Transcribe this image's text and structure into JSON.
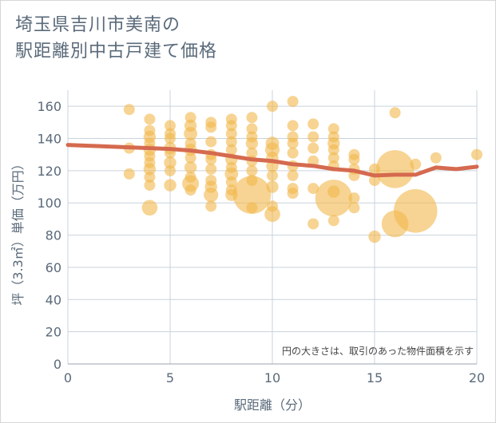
{
  "chart_data": {
    "type": "scatter",
    "title": [
      "埼玉県吉川市美南の",
      "駅距離別中古戸建て価格"
    ],
    "xlabel": "駅距離（分）",
    "ylabel": "坪（3.3㎡）単価（万円）",
    "note": "円の大きさは、取引のあった物件面積を示す",
    "xlim": [
      0,
      20
    ],
    "ylim": [
      0,
      170
    ],
    "xticks": [
      "0",
      "5",
      "10",
      "15",
      "20"
    ],
    "yticks": [
      "0",
      "20",
      "40",
      "60",
      "80",
      "100",
      "120",
      "140",
      "160"
    ],
    "grid": true,
    "colors": {
      "bubble": "#f2b84b",
      "trend": "#d56a4f",
      "grid": "#c9d3dc",
      "text": "#5a6a7a"
    },
    "points": [
      {
        "x": 3,
        "y": 158,
        "s": 1
      },
      {
        "x": 3,
        "y": 134,
        "s": 1
      },
      {
        "x": 3,
        "y": 118,
        "s": 1
      },
      {
        "x": 4,
        "y": 152,
        "s": 1
      },
      {
        "x": 4,
        "y": 145,
        "s": 1
      },
      {
        "x": 4,
        "y": 141,
        "s": 1.1
      },
      {
        "x": 4,
        "y": 137,
        "s": 1
      },
      {
        "x": 4,
        "y": 133,
        "s": 1.1
      },
      {
        "x": 4,
        "y": 129,
        "s": 1
      },
      {
        "x": 4,
        "y": 125,
        "s": 1
      },
      {
        "x": 4,
        "y": 121,
        "s": 1.1
      },
      {
        "x": 4,
        "y": 116,
        "s": 1
      },
      {
        "x": 4,
        "y": 111,
        "s": 1
      },
      {
        "x": 4,
        "y": 97,
        "s": 1.4
      },
      {
        "x": 5,
        "y": 148,
        "s": 1
      },
      {
        "x": 5,
        "y": 143,
        "s": 1
      },
      {
        "x": 5,
        "y": 140,
        "s": 1
      },
      {
        "x": 5,
        "y": 134,
        "s": 1.1
      },
      {
        "x": 5,
        "y": 131,
        "s": 1
      },
      {
        "x": 5,
        "y": 125,
        "s": 1.1
      },
      {
        "x": 5,
        "y": 120,
        "s": 1
      },
      {
        "x": 5,
        "y": 111,
        "s": 1.1
      },
      {
        "x": 6,
        "y": 153,
        "s": 1
      },
      {
        "x": 6,
        "y": 148,
        "s": 1.1
      },
      {
        "x": 6,
        "y": 143,
        "s": 1.2
      },
      {
        "x": 6,
        "y": 137,
        "s": 1
      },
      {
        "x": 6,
        "y": 133,
        "s": 1.1
      },
      {
        "x": 6,
        "y": 128,
        "s": 1
      },
      {
        "x": 6,
        "y": 122,
        "s": 1.1
      },
      {
        "x": 6,
        "y": 116,
        "s": 1
      },
      {
        "x": 6,
        "y": 112,
        "s": 1.5
      },
      {
        "x": 6,
        "y": 108,
        "s": 1
      },
      {
        "x": 7,
        "y": 150,
        "s": 1
      },
      {
        "x": 7,
        "y": 147,
        "s": 1
      },
      {
        "x": 7,
        "y": 138,
        "s": 1
      },
      {
        "x": 7,
        "y": 130,
        "s": 1
      },
      {
        "x": 7,
        "y": 127,
        "s": 1
      },
      {
        "x": 7,
        "y": 121,
        "s": 1
      },
      {
        "x": 7,
        "y": 114,
        "s": 1
      },
      {
        "x": 7,
        "y": 110,
        "s": 1.1
      },
      {
        "x": 7,
        "y": 105,
        "s": 1.3
      },
      {
        "x": 7,
        "y": 98,
        "s": 1
      },
      {
        "x": 8,
        "y": 152,
        "s": 1
      },
      {
        "x": 8,
        "y": 148,
        "s": 1
      },
      {
        "x": 8,
        "y": 143,
        "s": 1
      },
      {
        "x": 8,
        "y": 138,
        "s": 1
      },
      {
        "x": 8,
        "y": 133,
        "s": 1
      },
      {
        "x": 8,
        "y": 127,
        "s": 1.1
      },
      {
        "x": 8,
        "y": 122,
        "s": 1
      },
      {
        "x": 8,
        "y": 118,
        "s": 1.2
      },
      {
        "x": 8,
        "y": 113,
        "s": 1
      },
      {
        "x": 8,
        "y": 108,
        "s": 1
      },
      {
        "x": 8,
        "y": 105,
        "s": 1.1
      },
      {
        "x": 9,
        "y": 153,
        "s": 1
      },
      {
        "x": 9,
        "y": 146,
        "s": 1
      },
      {
        "x": 9,
        "y": 141,
        "s": 1
      },
      {
        "x": 9,
        "y": 137,
        "s": 1.1
      },
      {
        "x": 9,
        "y": 131,
        "s": 1
      },
      {
        "x": 9,
        "y": 126,
        "s": 1
      },
      {
        "x": 9,
        "y": 120,
        "s": 1
      },
      {
        "x": 9,
        "y": 114,
        "s": 1
      },
      {
        "x": 9,
        "y": 105,
        "s": 3.4
      },
      {
        "x": 9,
        "y": 97,
        "s": 1
      },
      {
        "x": 10,
        "y": 160,
        "s": 1
      },
      {
        "x": 10,
        "y": 137,
        "s": 1.2
      },
      {
        "x": 10,
        "y": 133,
        "s": 1.3
      },
      {
        "x": 10,
        "y": 128,
        "s": 1.1
      },
      {
        "x": 10,
        "y": 123,
        "s": 1.1
      },
      {
        "x": 10,
        "y": 117,
        "s": 1
      },
      {
        "x": 10,
        "y": 110,
        "s": 1.1
      },
      {
        "x": 10,
        "y": 98,
        "s": 1
      },
      {
        "x": 10,
        "y": 93,
        "s": 1.4
      },
      {
        "x": 11,
        "y": 163,
        "s": 1
      },
      {
        "x": 11,
        "y": 148,
        "s": 1
      },
      {
        "x": 11,
        "y": 141,
        "s": 1
      },
      {
        "x": 11,
        "y": 137,
        "s": 1
      },
      {
        "x": 11,
        "y": 131,
        "s": 1
      },
      {
        "x": 11,
        "y": 123,
        "s": 1
      },
      {
        "x": 11,
        "y": 117,
        "s": 1
      },
      {
        "x": 11,
        "y": 109,
        "s": 1
      },
      {
        "x": 11,
        "y": 106,
        "s": 1
      },
      {
        "x": 12,
        "y": 149,
        "s": 1
      },
      {
        "x": 12,
        "y": 141,
        "s": 1
      },
      {
        "x": 12,
        "y": 134,
        "s": 1
      },
      {
        "x": 12,
        "y": 126,
        "s": 1
      },
      {
        "x": 12,
        "y": 109,
        "s": 1
      },
      {
        "x": 12,
        "y": 87,
        "s": 1
      },
      {
        "x": 13,
        "y": 146,
        "s": 1
      },
      {
        "x": 13,
        "y": 141,
        "s": 1
      },
      {
        "x": 13,
        "y": 137,
        "s": 1.1
      },
      {
        "x": 13,
        "y": 133,
        "s": 1
      },
      {
        "x": 13,
        "y": 128,
        "s": 1
      },
      {
        "x": 13,
        "y": 123,
        "s": 1
      },
      {
        "x": 13,
        "y": 107,
        "s": 1.1
      },
      {
        "x": 13,
        "y": 103,
        "s": 3.3
      },
      {
        "x": 13,
        "y": 89,
        "s": 1
      },
      {
        "x": 14,
        "y": 130,
        "s": 1
      },
      {
        "x": 14,
        "y": 127,
        "s": 1
      },
      {
        "x": 14,
        "y": 121,
        "s": 1
      },
      {
        "x": 14,
        "y": 117,
        "s": 1
      },
      {
        "x": 14,
        "y": 103,
        "s": 1
      },
      {
        "x": 14,
        "y": 97,
        "s": 1
      },
      {
        "x": 15,
        "y": 121,
        "s": 1
      },
      {
        "x": 15,
        "y": 114,
        "s": 1
      },
      {
        "x": 15,
        "y": 79,
        "s": 1.1
      },
      {
        "x": 16,
        "y": 156,
        "s": 1
      },
      {
        "x": 16,
        "y": 121,
        "s": 3.4
      },
      {
        "x": 16,
        "y": 87,
        "s": 2.4
      },
      {
        "x": 17,
        "y": 124,
        "s": 1
      },
      {
        "x": 17,
        "y": 95,
        "s": 3.9
      },
      {
        "x": 18,
        "y": 128,
        "s": 1
      },
      {
        "x": 20,
        "y": 130,
        "s": 1
      }
    ],
    "trend": {
      "x": [
        0,
        1,
        2,
        3,
        4,
        5,
        6,
        7,
        8,
        9,
        10,
        11,
        12,
        13,
        14,
        15,
        16,
        17,
        18,
        19,
        20
      ],
      "y": [
        136,
        135.5,
        135,
        134.5,
        134,
        133.5,
        132.5,
        131,
        129,
        127,
        126,
        124,
        123,
        121,
        120,
        117,
        117.5,
        117.5,
        122,
        121,
        122.5
      ]
    }
  }
}
